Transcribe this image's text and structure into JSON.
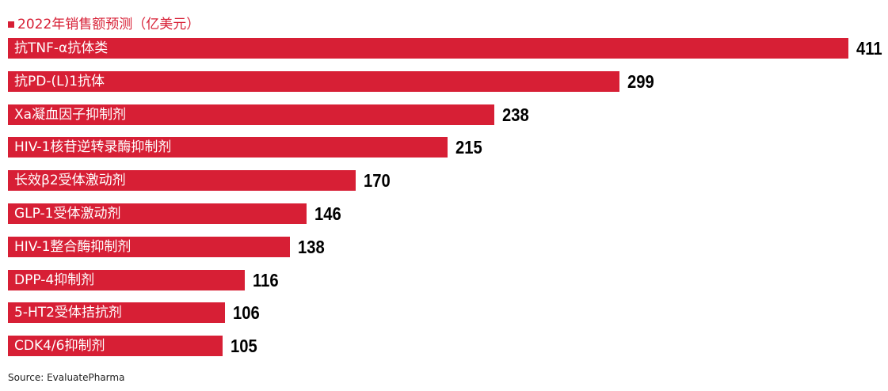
{
  "chart_data": {
    "type": "bar",
    "orientation": "horizontal",
    "series_name": "2022年销售额预测（亿美元）",
    "categories": [
      "抗TNF-α抗体类",
      "抗PD-(L)1抗体",
      "Xa凝血因子抑制剂",
      "HIV-1核苷逆转录酶抑制剂",
      "长效β2受体激动剂",
      "GLP-1受体激动剂",
      "HIV-1整合酶抑制剂",
      "DPP-4抑制剂",
      "5-HT2受体拮抗剂",
      "CDK4/6抑制剂"
    ],
    "values": [
      411,
      299,
      238,
      215,
      170,
      146,
      138,
      116,
      106,
      105
    ],
    "xlim": [
      0,
      411
    ],
    "grid": false,
    "legend_position": "top-left",
    "colors": {
      "bar": "#d71f35",
      "label_text": "#ffffff",
      "value_text": "#000000"
    }
  },
  "source": "Source: EvaluatePharma"
}
